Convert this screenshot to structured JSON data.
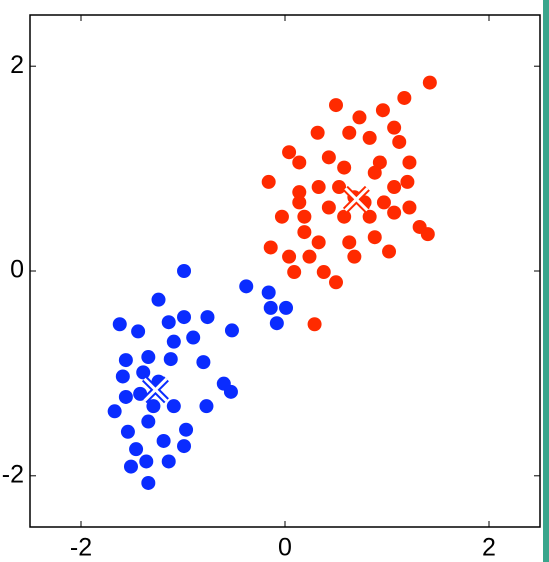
{
  "chart_data": {
    "type": "scatter",
    "xlim": [
      -2.5,
      2.5
    ],
    "ylim": [
      -2.5,
      2.5
    ],
    "xticks": [
      -2,
      0,
      2
    ],
    "yticks": [
      -2,
      0,
      2
    ],
    "grid": false,
    "series": [
      {
        "color": "#0a2cff",
        "marker": "dot",
        "x": [
          -0.99,
          -0.38,
          -0.16,
          0.01,
          -0.08,
          -0.14,
          -1.24,
          -1.62,
          -0.99,
          -0.76,
          -0.52,
          -0.9,
          -1.09,
          -1.44,
          -1.56,
          -1.34,
          -1.12,
          -0.8,
          -0.6,
          -0.53,
          -0.77,
          -0.97,
          -1.67,
          -1.54,
          -1.42,
          -1.24,
          -1.09,
          -1.34,
          -1.46,
          -1.36,
          -1.14,
          -1.34,
          -1.51,
          -1.19,
          -0.99,
          -1.56,
          -1.39,
          -1.14,
          -1.29,
          -1.59
        ],
        "values": [
          0.0,
          -0.15,
          -0.21,
          -0.36,
          -0.51,
          -0.36,
          -0.28,
          -0.52,
          -0.45,
          -0.45,
          -0.58,
          -0.65,
          -0.69,
          -0.59,
          -0.87,
          -0.84,
          -0.86,
          -0.89,
          -1.1,
          -1.18,
          -1.32,
          -1.55,
          -1.37,
          -1.57,
          -1.2,
          -1.08,
          -1.32,
          -1.47,
          -1.74,
          -1.86,
          -1.86,
          -2.07,
          -1.91,
          -1.66,
          -1.71,
          -1.23,
          -0.99,
          -0.5,
          -1.32,
          -1.03
        ]
      },
      {
        "color": "#ff2a00",
        "marker": "dot",
        "x": [
          1.42,
          1.17,
          0.5,
          0.96,
          0.73,
          1.07,
          0.63,
          0.32,
          0.83,
          0.04,
          0.14,
          0.43,
          0.58,
          0.93,
          1.22,
          -0.16,
          0.14,
          0.33,
          1.07,
          1.2,
          0.14,
          0.43,
          0.97,
          1.22,
          -0.03,
          0.19,
          0.58,
          0.83,
          1.07,
          1.32,
          1.4,
          0.19,
          0.33,
          0.63,
          0.88,
          -0.14,
          0.04,
          0.24,
          0.68,
          1.02,
          0.09,
          0.38,
          0.5,
          0.29,
          0.68,
          0.53,
          0.78,
          0.88,
          1.12
        ],
        "values": [
          1.84,
          1.69,
          1.62,
          1.57,
          1.5,
          1.4,
          1.35,
          1.35,
          1.3,
          1.16,
          1.06,
          1.11,
          1.01,
          1.06,
          1.06,
          0.87,
          0.77,
          0.82,
          0.82,
          0.87,
          0.67,
          0.62,
          0.67,
          0.62,
          0.53,
          0.53,
          0.53,
          0.53,
          0.57,
          0.43,
          0.36,
          0.38,
          0.28,
          0.28,
          0.33,
          0.23,
          0.14,
          0.14,
          0.14,
          0.19,
          -0.01,
          -0.01,
          -0.11,
          -0.52,
          0.72,
          0.82,
          0.67,
          0.96,
          1.26
        ]
      },
      {
        "color": "#0a2cff",
        "marker": "x",
        "x": [
          -1.27
        ],
        "values": [
          -1.16
        ]
      },
      {
        "color": "#ff2a00",
        "marker": "x",
        "x": [
          0.7
        ],
        "values": [
          0.7
        ]
      }
    ]
  }
}
